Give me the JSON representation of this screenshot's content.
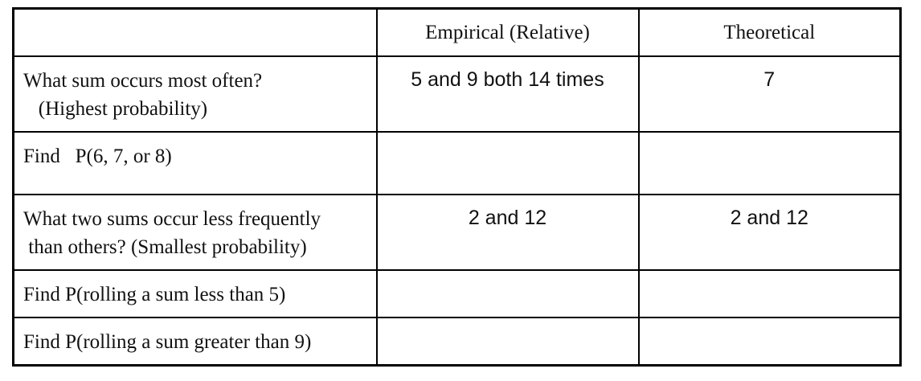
{
  "table": {
    "headers": [
      "",
      "Empirical (Relative)",
      "Theoretical"
    ],
    "rows": [
      {
        "question": "What sum occurs most often?\n   (Highest probability)",
        "empirical": "5 and 9 both 14 times",
        "theoretical": "7"
      },
      {
        "question": "Find   P(6, 7, or 8)",
        "empirical": "",
        "theoretical": ""
      },
      {
        "question": "What two sums occur less frequently\n than others? (Smallest probability)",
        "empirical": "2 and 12",
        "theoretical": "2 and 12"
      },
      {
        "question": "Find P(rolling a sum less than 5)",
        "empirical": "",
        "theoretical": ""
      },
      {
        "question": "Find P(rolling a sum greater than 9)",
        "empirical": "",
        "theoretical": ""
      }
    ]
  }
}
